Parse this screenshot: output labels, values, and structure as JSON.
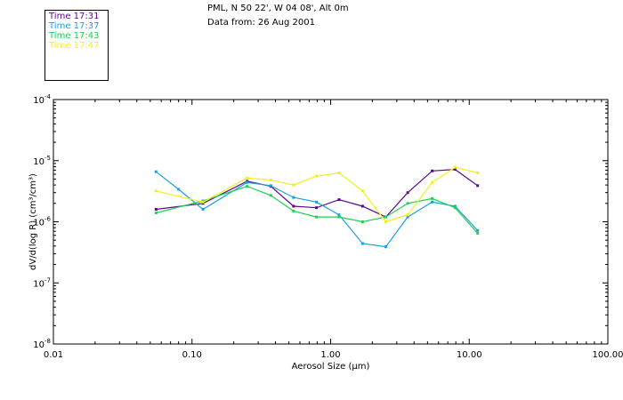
{
  "header": {
    "location": "PML, N 50 22', W 04 08', Alt 0m",
    "date_line": "Data from: 26 Aug 2001"
  },
  "colors": {
    "series_1731": "#5a0a8a",
    "series_1737": "#1aa0e0",
    "series_1743": "#20d050",
    "series_1747": "#f0f020",
    "axis": "#000000"
  },
  "chart_data": {
    "type": "line",
    "title": "",
    "xlabel": "Aerosol Size (μm)",
    "ylabel": "dV/d(log R) (cm³/cm³)",
    "x_scale": "log",
    "y_scale": "log",
    "xlim": [
      0.01,
      100
    ],
    "ylim": [
      1e-08,
      0.0001
    ],
    "grid": false,
    "legend_position": "top-left",
    "x_ticks": [
      {
        "value": 0.01,
        "label": "0.01"
      },
      {
        "value": 0.1,
        "label": "0.10"
      },
      {
        "value": 1,
        "label": "1.00"
      },
      {
        "value": 10,
        "label": "10.00"
      },
      {
        "value": 100,
        "label": "100.00"
      }
    ],
    "y_ticks": [
      {
        "value": 1e-08,
        "label_base": "10",
        "label_exp": "-8"
      },
      {
        "value": 1e-07,
        "label_base": "10",
        "label_exp": "-7"
      },
      {
        "value": 1e-06,
        "label_base": "10",
        "label_exp": "-6"
      },
      {
        "value": 1e-05,
        "label_base": "10",
        "label_exp": "-5"
      },
      {
        "value": 0.0001,
        "label_base": "10",
        "label_exp": "-4"
      }
    ],
    "series": [
      {
        "name": "Time 17:31",
        "color": "#5a0a8a",
        "x": [
          0.055,
          0.12,
          0.25,
          0.37,
          0.54,
          0.79,
          1.15,
          1.7,
          2.5,
          3.6,
          5.4,
          7.9,
          11.5
        ],
        "y": [
          1.6e-06,
          2e-06,
          4.6e-06,
          3.8e-06,
          1.8e-06,
          1.7e-06,
          2.3e-06,
          1.8e-06,
          1.2e-06,
          3e-06,
          6.8e-06,
          7.2e-06,
          3.9e-06
        ]
      },
      {
        "name": "Time 17:37",
        "color": "#1aa0e0",
        "x": [
          0.055,
          0.08,
          0.12,
          0.25,
          0.37,
          0.54,
          0.79,
          1.15,
          1.7,
          2.5,
          3.6,
          5.4,
          7.9,
          11.5
        ],
        "y": [
          6.6e-06,
          3.4e-06,
          1.6e-06,
          4.4e-06,
          3.9e-06,
          2.5e-06,
          2.1e-06,
          1.3e-06,
          4.4e-07,
          3.9e-07,
          1.2e-06,
          2.1e-06,
          1.8e-06,
          7.2e-07
        ]
      },
      {
        "name": "Time 17:43",
        "color": "#20d050",
        "x": [
          0.055,
          0.12,
          0.25,
          0.37,
          0.54,
          0.79,
          1.15,
          1.7,
          2.5,
          3.6,
          5.4,
          7.9,
          11.5
        ],
        "y": [
          1.4e-06,
          2.2e-06,
          3.8e-06,
          2.7e-06,
          1.5e-06,
          1.2e-06,
          1.2e-06,
          1e-06,
          1.2e-06,
          2e-06,
          2.4e-06,
          1.7e-06,
          6.5e-07
        ]
      },
      {
        "name": "Time 17:47",
        "color": "#f0f020",
        "x": [
          0.055,
          0.12,
          0.25,
          0.37,
          0.54,
          0.79,
          1.15,
          1.7,
          2.5,
          3.6,
          5.4,
          7.9,
          11.5
        ],
        "y": [
          3.2e-06,
          2.1e-06,
          5.2e-06,
          4.8e-06,
          4e-06,
          5.6e-06,
          6.3e-06,
          3.2e-06,
          1e-06,
          1.3e-06,
          4.4e-06,
          7.8e-06,
          6.3e-06
        ]
      }
    ]
  }
}
